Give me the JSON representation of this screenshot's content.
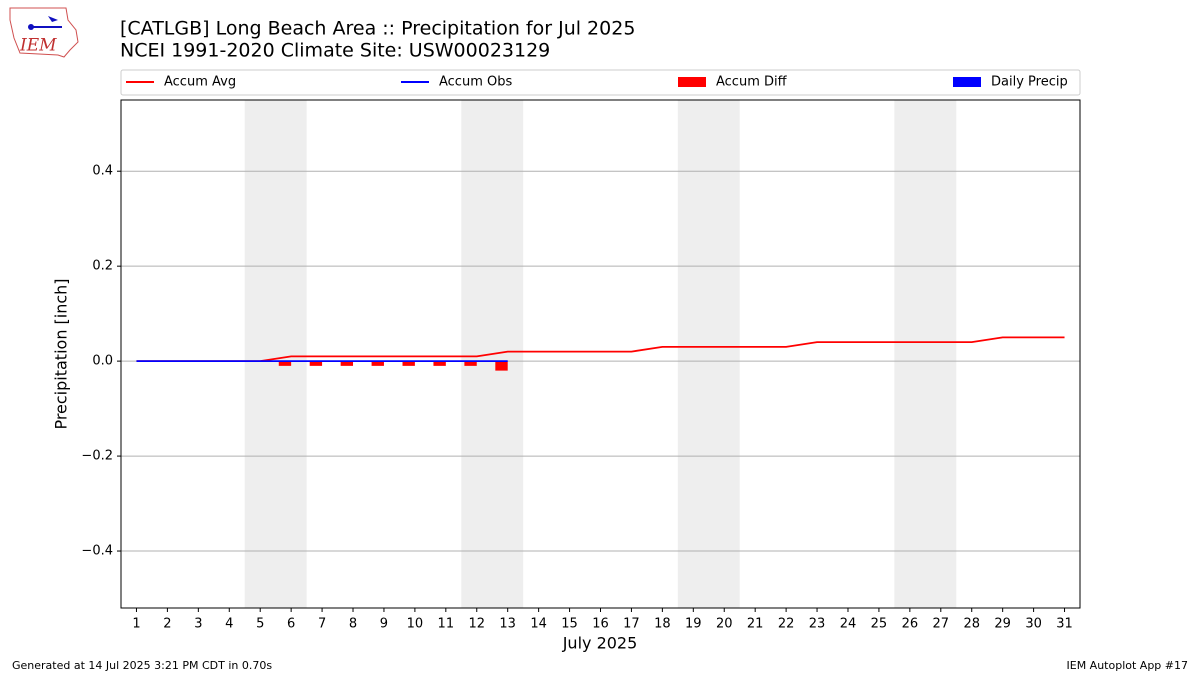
{
  "chart_data": {
    "type": "line",
    "title": "[CATLGB] Long Beach Area :: Precipitation for Jul 2025",
    "subtitle": "NCEI 1991-2020 Climate Site: USW00023129",
    "logo_text": "IEM",
    "xlabel": "July 2025",
    "ylabel": "Precipitation [inch]",
    "x": [
      1,
      2,
      3,
      4,
      5,
      6,
      7,
      8,
      9,
      10,
      11,
      12,
      13,
      14,
      15,
      16,
      17,
      18,
      19,
      20,
      21,
      22,
      23,
      24,
      25,
      26,
      27,
      28,
      29,
      30,
      31
    ],
    "series": [
      {
        "name": "Accum Avg",
        "kind": "line",
        "color": "#ff0000",
        "values": [
          0,
          0,
          0,
          0,
          0,
          0.01,
          0.01,
          0.01,
          0.01,
          0.01,
          0.01,
          0.01,
          0.02,
          0.02,
          0.02,
          0.02,
          0.02,
          0.03,
          0.03,
          0.03,
          0.03,
          0.03,
          0.04,
          0.04,
          0.04,
          0.04,
          0.04,
          0.04,
          0.05,
          0.05,
          0.05
        ]
      },
      {
        "name": "Accum Obs",
        "kind": "line",
        "color": "#0000ff",
        "values": [
          0,
          0,
          0,
          0,
          0,
          0,
          0,
          0,
          0,
          0,
          0,
          0,
          0,
          null,
          null,
          null,
          null,
          null,
          null,
          null,
          null,
          null,
          null,
          null,
          null,
          null,
          null,
          null,
          null,
          null,
          null
        ]
      },
      {
        "name": "Accum Diff",
        "kind": "bar",
        "side": "left",
        "color": "#ff0000",
        "values": [
          0,
          0,
          0,
          0,
          0,
          -0.01,
          -0.01,
          -0.01,
          -0.01,
          -0.01,
          -0.01,
          -0.01,
          -0.02,
          null,
          null,
          null,
          null,
          null,
          null,
          null,
          null,
          null,
          null,
          null,
          null,
          null,
          null,
          null,
          null,
          null,
          null
        ]
      },
      {
        "name": "Daily Precip",
        "kind": "bar",
        "side": "right",
        "color": "#0000ff",
        "values": [
          0,
          0,
          0,
          0,
          0,
          0,
          0,
          0,
          0,
          0,
          0,
          0,
          0,
          null,
          null,
          null,
          null,
          null,
          null,
          null,
          null,
          null,
          null,
          null,
          null,
          null,
          null,
          null,
          null,
          null,
          null
        ]
      }
    ],
    "weekend_spans": [
      [
        4.5,
        6.5
      ],
      [
        11.5,
        13.5
      ],
      [
        18.5,
        20.5
      ],
      [
        25.5,
        27.5
      ]
    ],
    "xlim": [
      0.5,
      31.5
    ],
    "xticks": [
      1,
      2,
      3,
      4,
      5,
      6,
      7,
      8,
      9,
      10,
      11,
      12,
      13,
      14,
      15,
      16,
      17,
      18,
      19,
      20,
      21,
      22,
      23,
      24,
      25,
      26,
      27,
      28,
      29,
      30,
      31
    ],
    "ylim": [
      -0.52,
      0.55
    ],
    "yticks": [
      {
        "value": -0.4,
        "label": "−0.4"
      },
      {
        "value": -0.2,
        "label": "−0.2"
      },
      {
        "value": 0,
        "label": "0.0"
      },
      0.2,
      0.4
    ],
    "grid": true,
    "legend": "top",
    "footer_left": "Generated at 14 Jul 2025 3:21 PM CDT in 0.70s",
    "footer_right": "IEM Autoplot App #17"
  }
}
